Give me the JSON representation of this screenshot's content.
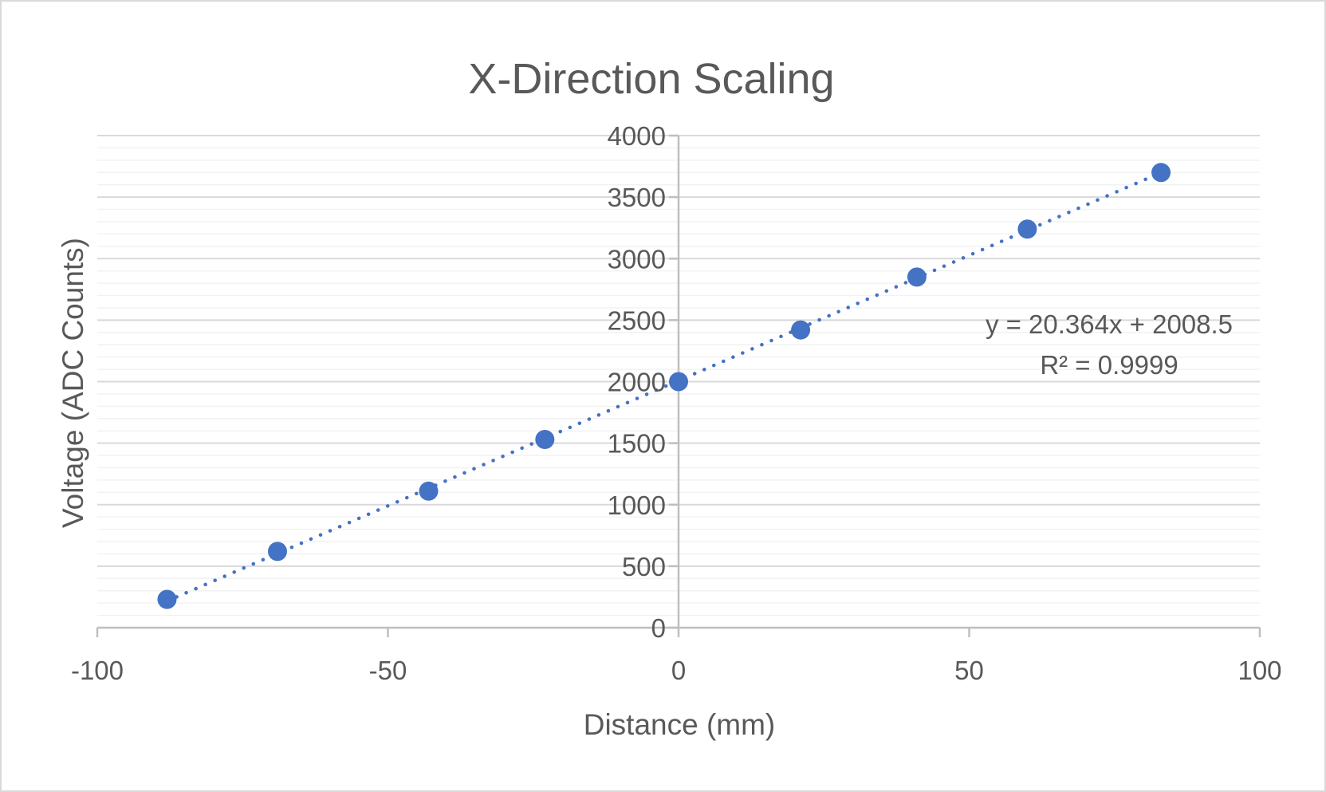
{
  "chart_data": {
    "type": "scatter",
    "title": "X-Direction Scaling",
    "xlabel": "Distance (mm)",
    "ylabel": "Voltage (ADC Counts)",
    "xlim": [
      -100,
      100
    ],
    "ylim": [
      0,
      4000
    ],
    "x_ticks": [
      -100,
      -50,
      0,
      50,
      100
    ],
    "y_ticks": [
      0,
      500,
      1000,
      1500,
      2000,
      2500,
      3000,
      3500,
      4000
    ],
    "x_tick_labels": [
      "-100",
      "-50",
      "0",
      "50",
      "100"
    ],
    "y_tick_labels": [
      "0",
      "500",
      "1000",
      "1500",
      "2000",
      "2500",
      "3000",
      "3500",
      "4000"
    ],
    "grid": {
      "major": true,
      "minor": true,
      "minor_step": 100
    },
    "series": [
      {
        "x": [
          -88,
          -69,
          -43,
          -23,
          0,
          21,
          41,
          60,
          83
        ],
        "y": [
          230,
          620,
          1110,
          1530,
          2000,
          2420,
          2850,
          3240,
          3700
        ]
      }
    ],
    "trendline": {
      "type": "linear",
      "style": "dotted",
      "slope": 20.364,
      "intercept": 2008.5,
      "x_range": [
        -88,
        83
      ],
      "equation_label": "y = 20.364x + 2008.5",
      "r2_label": "R² = 0.9999"
    },
    "colors": {
      "series": "#4472c4",
      "text": "#595959",
      "major_grid": "#d9d9d9",
      "minor_grid": "#f2f2f2",
      "axis": "#bfbfbf",
      "border": "#d9d9d9"
    }
  }
}
